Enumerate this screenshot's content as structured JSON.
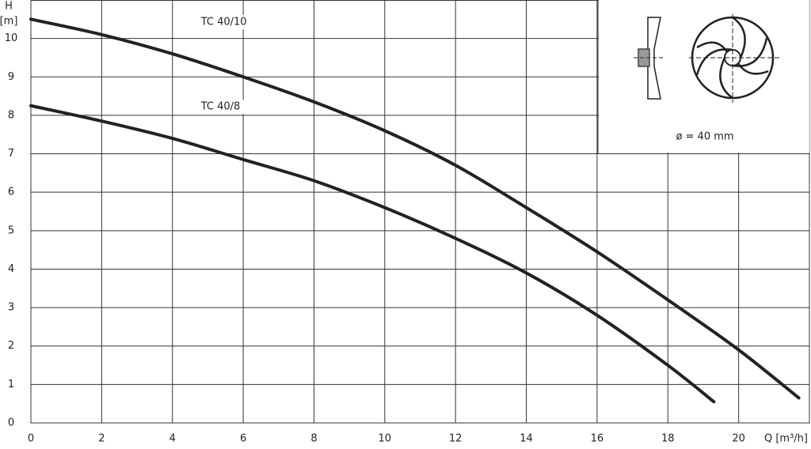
{
  "chart_data": {
    "type": "line",
    "y_label": "H",
    "y_unit": "[m]",
    "x_label": "Q [m³/h]",
    "xlim": [
      0,
      22
    ],
    "ylim": [
      0,
      11
    ],
    "xticks": [
      0,
      2,
      4,
      6,
      8,
      10,
      12,
      14,
      16,
      18,
      20
    ],
    "yticks": [
      0,
      1,
      2,
      3,
      4,
      5,
      6,
      7,
      8,
      9,
      10
    ],
    "grid": true,
    "inset_label": "ø = 40 mm",
    "series": [
      {
        "name": "TC 40/10",
        "color": "#222222",
        "x": [
          0,
          2,
          4,
          6,
          8,
          10,
          12,
          14,
          16,
          18,
          20,
          21.7
        ],
        "values": [
          10.5,
          10.1,
          9.6,
          9.0,
          8.35,
          7.6,
          6.7,
          5.6,
          4.45,
          3.2,
          1.9,
          0.65
        ]
      },
      {
        "name": "TC 40/8",
        "color": "#222222",
        "x": [
          0,
          2,
          4,
          6,
          8,
          10,
          12,
          14,
          16,
          18,
          19.3
        ],
        "values": [
          8.25,
          7.85,
          7.4,
          6.85,
          6.3,
          5.6,
          4.8,
          3.9,
          2.8,
          1.5,
          0.55
        ]
      }
    ]
  }
}
